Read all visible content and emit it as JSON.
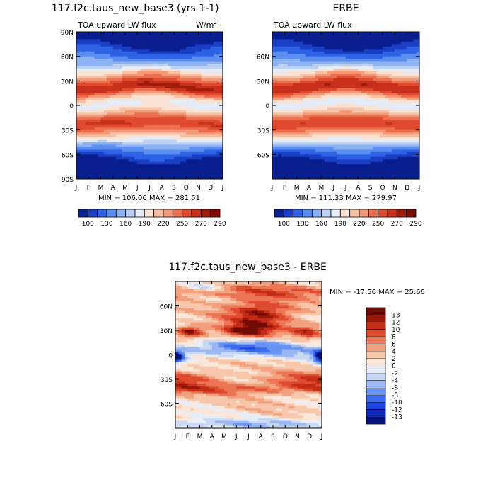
{
  "figure": {
    "panel_a_title": "117.f2c.taus_new_base3 (yrs 1-1)",
    "panel_b_title": "ERBE",
    "panel_c_title": "117.f2c.taus_new_base3 - ERBE",
    "variable_label": "TOA upward LW flux",
    "units_base": "W/m",
    "units_exp": "2"
  },
  "chart_data": [
    {
      "id": "model",
      "type": "heatmap",
      "title": "117.f2c.taus_new_base3 (yrs 1-1)",
      "subtitle": "TOA upward LW flux",
      "units": "W/m2",
      "x_ticks": [
        "J",
        "F",
        "M",
        "A",
        "M",
        "J",
        "J",
        "A",
        "S",
        "O",
        "N",
        "D",
        "J"
      ],
      "y_ticks": [
        "90N",
        "60N",
        "30N",
        "0",
        "30S",
        "60S",
        "90S"
      ],
      "ylim": [
        -90,
        90
      ],
      "stats": "MIN = 106.06 MAX = 281.51",
      "min": 106.06,
      "max": 281.51,
      "colorbar_levels": [
        "100",
        "130",
        "160",
        "190",
        "220",
        "250",
        "270",
        "290"
      ]
    },
    {
      "id": "obs",
      "type": "heatmap",
      "title": "ERBE",
      "subtitle": "TOA upward LW flux",
      "units": "W/m2",
      "x_ticks": [
        "J",
        "F",
        "M",
        "A",
        "M",
        "J",
        "J",
        "A",
        "S",
        "O",
        "N",
        "D",
        "J"
      ],
      "y_ticks": [
        "60N",
        "30N",
        "0",
        "30S",
        "60S"
      ],
      "ylim": [
        -90,
        90
      ],
      "stats": "MIN = 111.33 MAX = 279.97",
      "min": 111.33,
      "max": 279.97,
      "colorbar_levels": [
        "100",
        "130",
        "160",
        "190",
        "220",
        "250",
        "270",
        "290"
      ]
    },
    {
      "id": "diff",
      "type": "heatmap",
      "title": "117.f2c.taus_new_base3 - ERBE",
      "x_ticks": [
        "J",
        "F",
        "M",
        "A",
        "M",
        "J",
        "J",
        "A",
        "S",
        "O",
        "N",
        "D",
        "J"
      ],
      "y_ticks": [
        "60N",
        "30N",
        "0",
        "30S",
        "60S"
      ],
      "ylim": [
        -90,
        90
      ],
      "stats": "MIN = -17.56 MAX =  25.66",
      "min": -17.56,
      "max": 25.66,
      "colorbar_levels": [
        "13",
        "12",
        "10",
        "8",
        "6",
        "4",
        "2",
        "0",
        "-2",
        "-4",
        "-6",
        "-8",
        "-10",
        "-12",
        "-13"
      ]
    }
  ],
  "colors": {
    "lw_scale": [
      "#0a1f8f",
      "#1a3fc4",
      "#2f63e6",
      "#5a8ef0",
      "#8db3f5",
      "#bcd2f7",
      "#e3ecf8",
      "#fbe3d3",
      "#f8c2a6",
      "#f39a78",
      "#ec7050",
      "#e04a2f",
      "#c7301a",
      "#a01c0b",
      "#7a0d04"
    ],
    "diff_scale": [
      "#05107a",
      "#0a27b5",
      "#1f47e0",
      "#3d6cf0",
      "#6893f2",
      "#9bb7f4",
      "#c9d8f5",
      "#e7eef7",
      "#fbe6d8",
      "#f8c6ab",
      "#f3a07f",
      "#eb7554",
      "#df4b2e",
      "#c32d17",
      "#991707",
      "#6e0b02"
    ]
  }
}
